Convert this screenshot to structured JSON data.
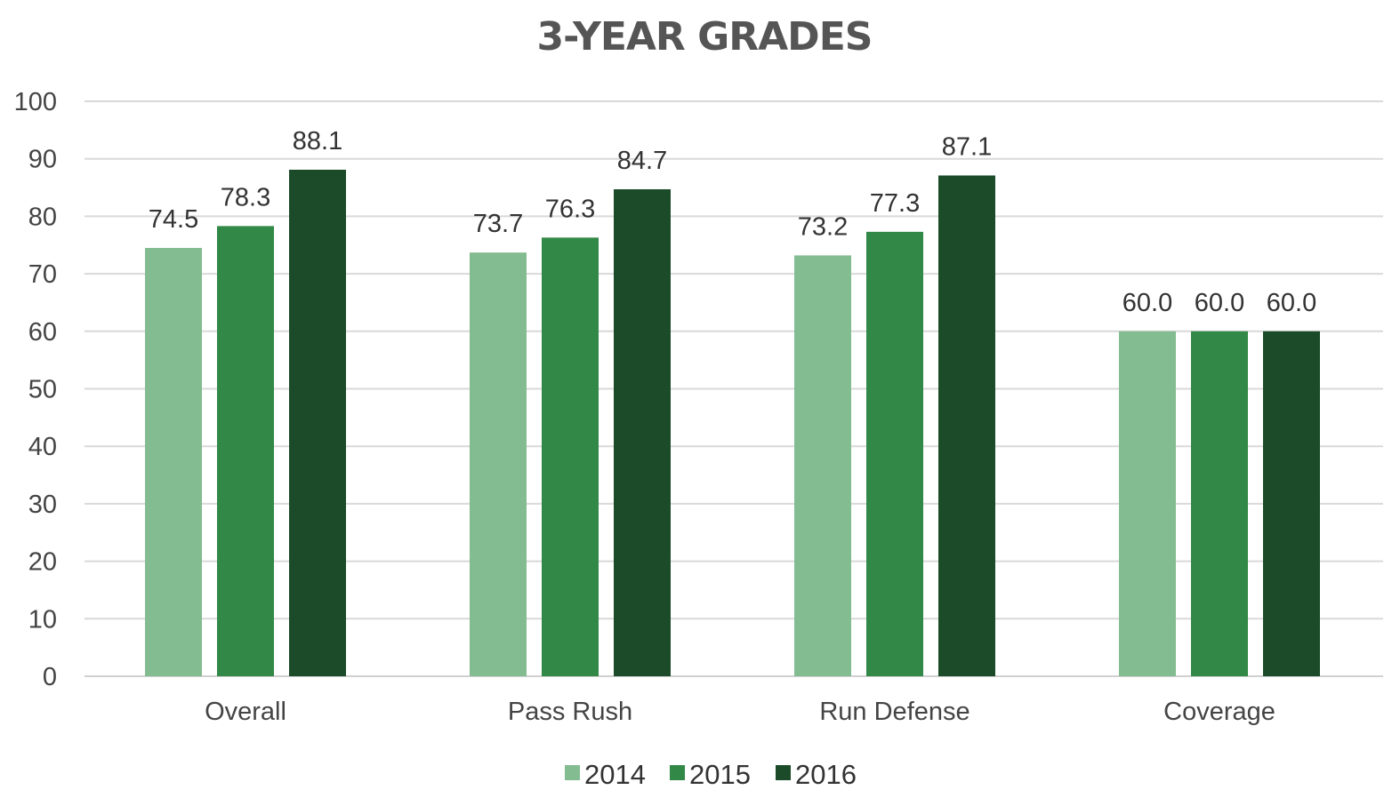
{
  "chart_data": {
    "type": "bar",
    "title": "3-YEAR GRADES",
    "xlabel": "",
    "ylabel": "",
    "categories": [
      "Overall",
      "Pass Rush",
      "Run Defense",
      "Coverage"
    ],
    "series": [
      {
        "name": "2014",
        "color": "#84bc91",
        "values": [
          74.5,
          73.7,
          73.2,
          60.0
        ]
      },
      {
        "name": "2015",
        "color": "#328846",
        "values": [
          78.3,
          76.3,
          77.3,
          60.0
        ]
      },
      {
        "name": "2016",
        "color": "#1b4b28",
        "values": [
          88.1,
          84.7,
          87.1,
          60.0
        ]
      }
    ],
    "ylim": [
      0,
      100
    ],
    "yticks": [
      0,
      10,
      20,
      30,
      40,
      50,
      60,
      70,
      80,
      90,
      100
    ],
    "data_label_format": "one-decimal",
    "grid": true,
    "legend_position": "bottom"
  }
}
